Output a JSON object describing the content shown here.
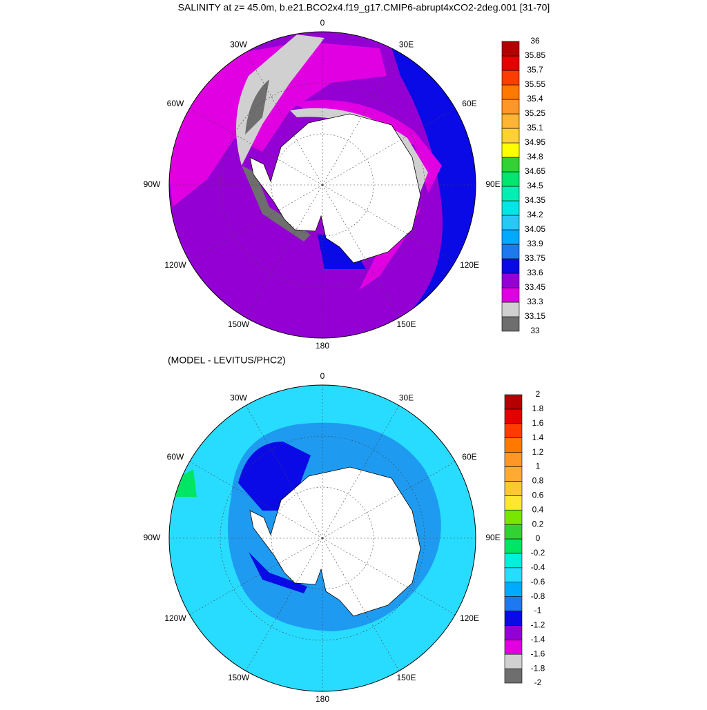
{
  "maps": [
    {
      "title": "SALINITY at z=  45.0m, b.e21.BCO2x4.f19_g17.CMIP6-abrupt4xCO2-2deg.001 [31-70]",
      "lon_labels": [
        "0",
        "30E",
        "60E",
        "90E",
        "120E",
        "150E",
        "180",
        "150W",
        "120W",
        "90W",
        "60W",
        "30W"
      ],
      "colorbar": {
        "levels": [
          33,
          33.15,
          33.3,
          33.45,
          33.6,
          33.75,
          33.9,
          34.05,
          34.2,
          34.35,
          34.5,
          34.65,
          34.8,
          34.95,
          35.1,
          35.25,
          35.4,
          35.55,
          35.7,
          35.85,
          36
        ],
        "colors": [
          "#6e6e6e",
          "#d0d0d0",
          "#e100e1",
          "#9400d3",
          "#0a0ae6",
          "#1e78f0",
          "#00aaff",
          "#28c8f5",
          "#00e6e6",
          "#00f0b4",
          "#00e66e",
          "#32d232",
          "#ffff00",
          "#ffd232",
          "#ffb432",
          "#ff9628",
          "#ff7800",
          "#ff3c00",
          "#e60000",
          "#b40000"
        ]
      }
    },
    {
      "title": "(MODEL - LEVITUS/PHC2)",
      "lon_labels": [
        "0",
        "30E",
        "60E",
        "90E",
        "120E",
        "150E",
        "180",
        "150W",
        "120W",
        "90W",
        "60W",
        "30W"
      ],
      "colorbar": {
        "levels": [
          -2,
          -1.8,
          -1.6,
          -1.4,
          -1.2,
          -1,
          -0.8,
          -0.6,
          -0.4,
          -0.2,
          0,
          0.2,
          0.4,
          0.6,
          0.8,
          1,
          1.2,
          1.4,
          1.6,
          1.8,
          2
        ],
        "colors": [
          "#6e6e6e",
          "#d0d0d0",
          "#e100e1",
          "#9400d3",
          "#0a0ae6",
          "#1e78f0",
          "#00aaff",
          "#28dcff",
          "#00f0dc",
          "#00e664",
          "#32d232",
          "#78e600",
          "#ffe632",
          "#ffc832",
          "#ffaa32",
          "#ff9628",
          "#ff7800",
          "#ff3c00",
          "#e60000",
          "#b40000"
        ]
      }
    }
  ]
}
